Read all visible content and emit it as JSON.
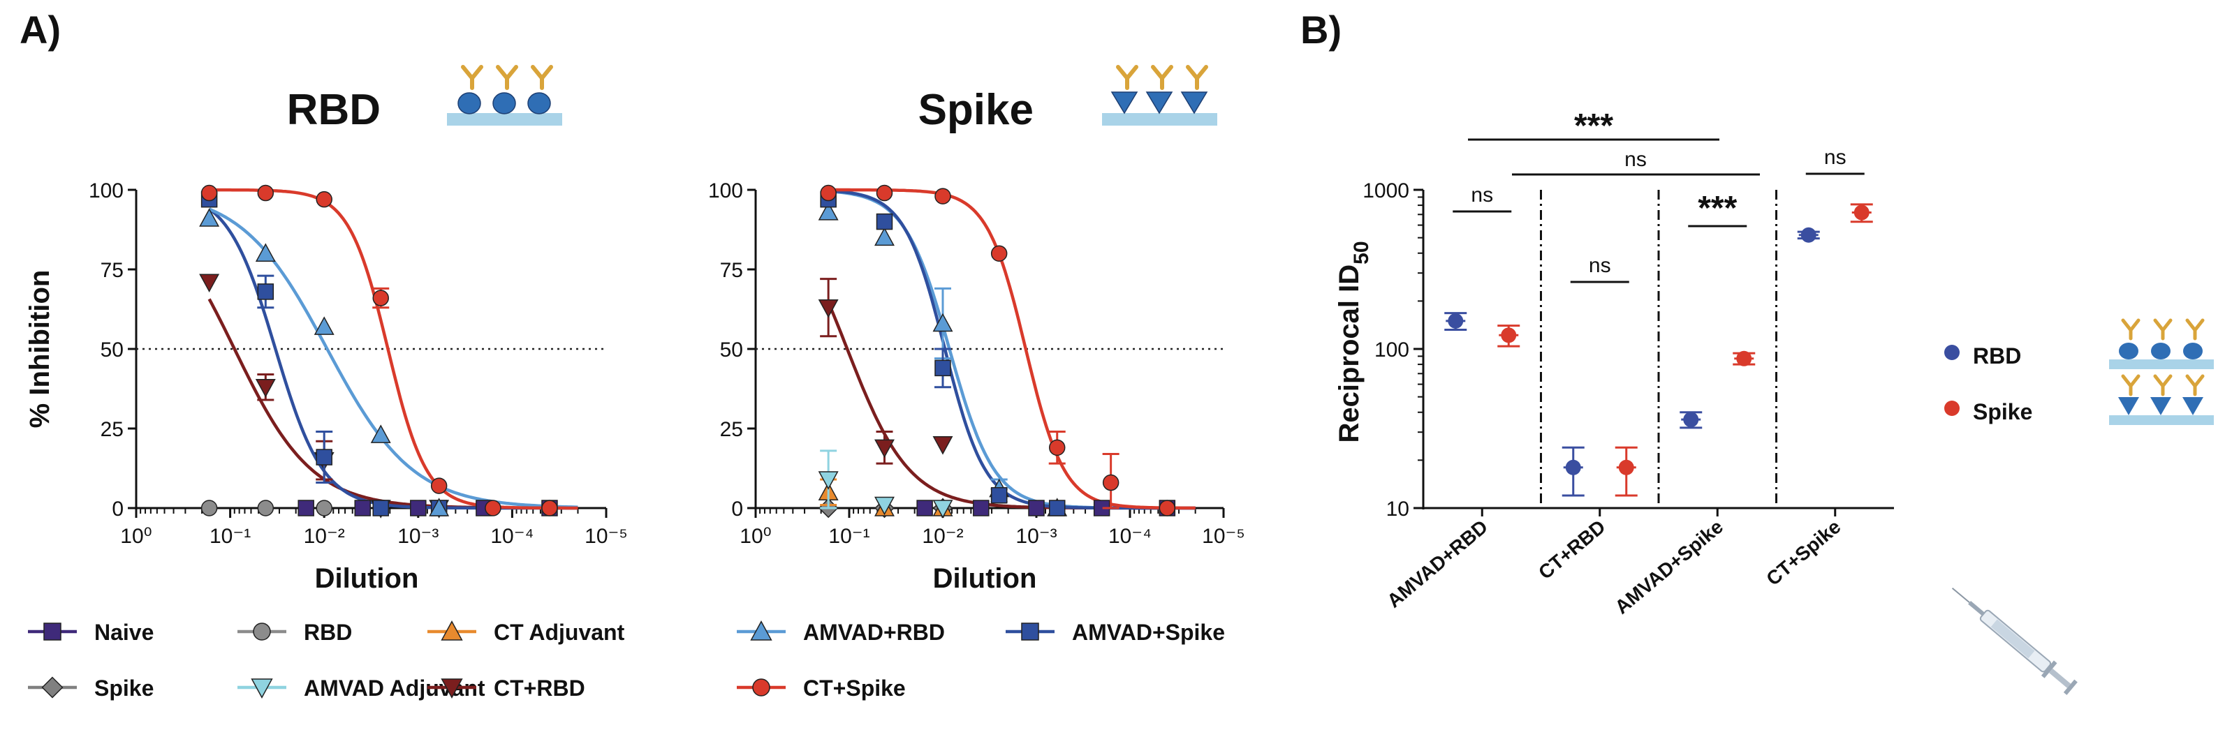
{
  "panels": {
    "a_letter": "A)",
    "b_letter": "B)"
  },
  "colors": {
    "naive": "#3f2a7a",
    "rbd": "#8c8c8c",
    "spike": "#808080",
    "ct_adjuvant": "#e88a2e",
    "amvad_adjuvant": "#8fd3e0",
    "amvad_rbd": "#5b9bd5",
    "amvad_spike": "#2f4f9e",
    "ct_rbd": "#7b1e1e",
    "ct_spike": "#d93a2b",
    "b_rbd": "#3a4ea0",
    "b_spike": "#d93a2b",
    "substrate": "#a9d3e8",
    "antibody": "#d9a43a",
    "protein": "#2f6eb5"
  },
  "chart_data": [
    {
      "id": "rbd_curve",
      "type": "line",
      "title": "RBD",
      "xlabel": "Dilution",
      "ylabel": "% Inhibition",
      "x_scale": "log-reversed",
      "xlim": [
        1,
        1e-05
      ],
      "ylim": [
        0,
        100
      ],
      "x_tick_labels": [
        "10⁰",
        "10⁻¹",
        "10⁻²",
        "10⁻³",
        "10⁻⁴",
        "10⁻⁵"
      ],
      "y_tick_labels": [
        "0",
        "25",
        "50",
        "75",
        "100"
      ],
      "reference_line": 50,
      "series": [
        {
          "key": "naive",
          "x": [
            0.0156,
            0.0039,
            0.001,
            0.0002,
            4e-05
          ],
          "y": [
            0,
            0,
            0,
            0,
            0
          ],
          "err": [
            0,
            0,
            0,
            0,
            0
          ]
        },
        {
          "key": "rbd",
          "x": [
            0.167,
            0.042,
            0.01
          ],
          "y": [
            0,
            0,
            0
          ],
          "err": [
            0,
            0,
            0
          ]
        },
        {
          "key": "ct_rbd",
          "x": [
            0.167,
            0.042,
            0.01,
            0.0025,
            0.0006
          ],
          "y": [
            71,
            38,
            15,
            0,
            0
          ],
          "err": [
            0,
            4,
            6,
            0,
            0
          ],
          "fit_ic50": 0.09,
          "fit_hill": 1.05
        },
        {
          "key": "amvad_spike",
          "x": [
            0.167,
            0.042,
            0.01,
            0.0025,
            0.0006
          ],
          "y": [
            97,
            68,
            16,
            0,
            0
          ],
          "err": [
            0,
            5,
            8,
            0,
            0
          ],
          "fit_ic50": 0.033,
          "fit_hill": 1.7
        },
        {
          "key": "amvad_rbd",
          "x": [
            0.167,
            0.042,
            0.01,
            0.0025,
            0.0006
          ],
          "y": [
            91,
            80,
            57,
            23,
            0
          ],
          "err": [
            0,
            0,
            0,
            0,
            0
          ],
          "fit_ic50": 0.0093,
          "fit_hill": 0.95
        },
        {
          "key": "ct_spike",
          "x": [
            0.167,
            0.042,
            0.01,
            0.0025,
            0.0006,
            0.00016,
            4e-05
          ],
          "y": [
            99,
            99,
            97,
            66,
            7,
            0,
            0
          ],
          "err": [
            0,
            0,
            0,
            3,
            0,
            0,
            0
          ],
          "fit_ic50": 0.0021,
          "fit_hill": 2.1
        }
      ]
    },
    {
      "id": "spike_curve",
      "type": "line",
      "title": "Spike",
      "xlabel": "Dilution",
      "ylabel": "",
      "x_scale": "log-reversed",
      "xlim": [
        1,
        1e-05
      ],
      "ylim": [
        0,
        100
      ],
      "x_tick_labels": [
        "10⁰",
        "10⁻¹",
        "10⁻²",
        "10⁻³",
        "10⁻⁴",
        "10⁻⁵"
      ],
      "y_tick_labels": [
        "0",
        "25",
        "50",
        "75",
        "100"
      ],
      "reference_line": 50,
      "series": [
        {
          "key": "naive",
          "x": [
            0.0156,
            0.0039,
            0.001,
            0.0002,
            4e-05
          ],
          "y": [
            0,
            0,
            0,
            0,
            0
          ],
          "err": [
            0,
            0,
            0,
            0,
            0
          ]
        },
        {
          "key": "spike",
          "x": [
            0.167,
            0.042,
            0.01
          ],
          "y": [
            0,
            0,
            0
          ],
          "err": [
            0,
            0,
            0
          ]
        },
        {
          "key": "ct_adjuvant",
          "x": [
            0.167,
            0.042,
            0.01
          ],
          "y": [
            5,
            0,
            0
          ],
          "err": [
            4,
            0,
            0
          ]
        },
        {
          "key": "amvad_adjuvant",
          "x": [
            0.167,
            0.042,
            0.01
          ],
          "y": [
            9,
            1,
            0
          ],
          "err": [
            9,
            0,
            0
          ]
        },
        {
          "key": "ct_rbd",
          "x": [
            0.167,
            0.042,
            0.01
          ],
          "y": [
            63,
            19,
            20
          ],
          "err": [
            9,
            5,
            0
          ],
          "fit_ic50": 0.105,
          "fit_hill": 1.3
        },
        {
          "key": "amvad_rbd",
          "x": [
            0.167,
            0.042,
            0.01,
            0.0025,
            0.0006
          ],
          "y": [
            93,
            85,
            58,
            6,
            0
          ],
          "err": [
            0,
            0,
            11,
            3,
            0
          ],
          "fit_ic50": 0.0085,
          "fit_hill": 1.8
        },
        {
          "key": "amvad_spike",
          "x": [
            0.167,
            0.042,
            0.01,
            0.0025,
            0.0006
          ],
          "y": [
            97,
            90,
            44,
            4,
            0
          ],
          "err": [
            0,
            0,
            6,
            2,
            0
          ],
          "fit_ic50": 0.0095,
          "fit_hill": 2.0
        },
        {
          "key": "ct_spike",
          "x": [
            0.167,
            0.042,
            0.01,
            0.0025,
            0.0006,
            0.00016,
            4e-05
          ],
          "y": [
            99,
            99,
            98,
            80,
            19,
            8,
            0
          ],
          "err": [
            0,
            0,
            0,
            0,
            5,
            9,
            0
          ],
          "fit_ic50": 0.0013,
          "fit_hill": 2.1
        }
      ]
    },
    {
      "id": "id50",
      "type": "scatter",
      "ylabel": "Reciprocal ID",
      "ylabel_sub": "50",
      "y_scale": "log",
      "ylim": [
        10,
        1000
      ],
      "y_tick_labels": [
        "10",
        "100",
        "1000"
      ],
      "categories": [
        "AMVAD+RBD",
        "CT+RBD",
        "AMVAD+Spike",
        "CT+Spike"
      ],
      "series": [
        {
          "key": "b_rbd",
          "name": "RBD",
          "values": [
            150,
            18,
            36,
            520
          ],
          "err": [
            18,
            6,
            4,
            25
          ]
        },
        {
          "key": "b_spike",
          "name": "Spike",
          "values": [
            122,
            18,
            87,
            720
          ],
          "err": [
            18,
            6,
            7,
            90
          ]
        }
      ],
      "comparisons": [
        {
          "label": "ns",
          "within": 0
        },
        {
          "label": "ns",
          "within": 1
        },
        {
          "label": "***",
          "within": 2
        },
        {
          "label": "ns",
          "within": 3
        },
        {
          "label": "***",
          "span": "top"
        },
        {
          "label": "ns",
          "span": "second"
        }
      ]
    }
  ],
  "legend_a": [
    {
      "key": "naive",
      "label": "Naive",
      "marker": "square"
    },
    {
      "key": "rbd",
      "label": "RBD",
      "marker": "circle"
    },
    {
      "key": "ct_adjuvant",
      "label": "CT Adjuvant",
      "marker": "triangle-up"
    },
    {
      "key": "amvad_rbd",
      "label": "AMVAD+RBD",
      "marker": "triangle-up"
    },
    {
      "key": "amvad_spike",
      "label": "AMVAD+Spike",
      "marker": "square"
    },
    {
      "key": "spike",
      "label": "Spike",
      "marker": "diamond"
    },
    {
      "key": "amvad_adjuvant",
      "label": "AMVAD Adjuvant",
      "marker": "triangle-down"
    },
    {
      "key": "ct_rbd",
      "label": "CT+RBD",
      "marker": "triangle-down"
    },
    {
      "key": "ct_spike",
      "label": "CT+Spike",
      "marker": "circle"
    }
  ],
  "legend_b": [
    {
      "key": "b_rbd",
      "label": "RBD"
    },
    {
      "key": "b_spike",
      "label": "Spike"
    }
  ]
}
